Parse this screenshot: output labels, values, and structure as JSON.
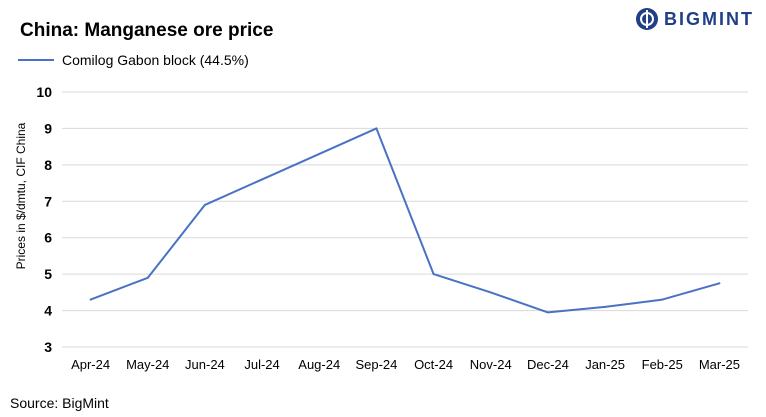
{
  "brand": {
    "name": "BIGMINT",
    "color": "#1f3f86"
  },
  "source": "Source:  BigMint",
  "chart_data": {
    "type": "line",
    "title": "China: Manganese ore price",
    "xlabel": "",
    "ylabel": "Prices in $/dmtu, CIF China",
    "categories": [
      "Apr-24",
      "May-24",
      "Jun-24",
      "Jul-24",
      "Aug-24",
      "Sep-24",
      "Oct-24",
      "Nov-24",
      "Dec-24",
      "Jan-25",
      "Feb-25",
      "Mar-25"
    ],
    "series": [
      {
        "name": "Comilog Gabon block (44.5%)",
        "color": "#4a72c4",
        "values": [
          4.3,
          4.9,
          6.9,
          7.6,
          8.3,
          9.0,
          5.0,
          4.5,
          3.95,
          4.1,
          4.3,
          4.75
        ]
      }
    ],
    "ylim": [
      3,
      10
    ],
    "yticks": [
      "3",
      "4",
      "5",
      "6",
      "7",
      "8",
      "9",
      "10"
    ],
    "grid": true,
    "grid_color": "#d9d9d9",
    "legend_position": "top-left"
  }
}
